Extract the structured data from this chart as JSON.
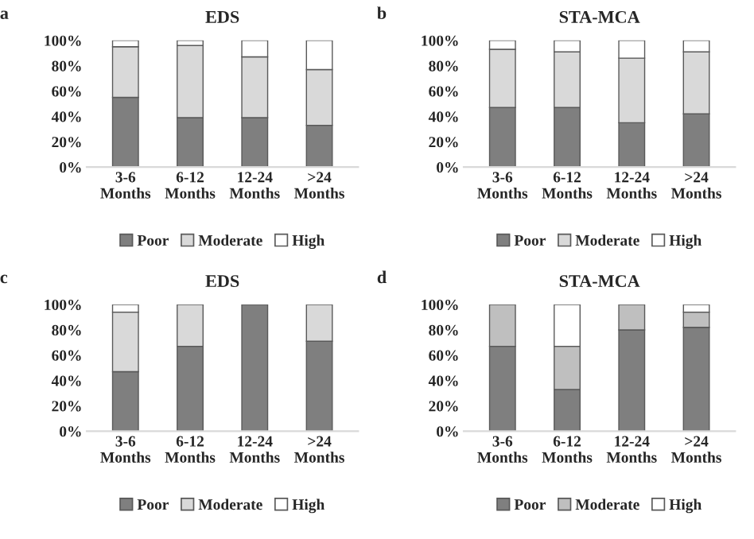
{
  "chart_data": [
    {
      "type": "bar",
      "stacked": true,
      "title": "EDS",
      "annotations": [
        "a"
      ],
      "categories": [
        "3-6\nMonths",
        "6-12\nMonths",
        "12-24\nMonths",
        ">24\nMonths"
      ],
      "ylim": [
        0,
        100
      ],
      "yticks": [
        {
          "value": 0,
          "label": "0%"
        },
        {
          "value": 20,
          "label": "20%"
        },
        {
          "value": 40,
          "label": "40%"
        },
        {
          "value": 60,
          "label": "60%"
        },
        {
          "value": 80,
          "label": "80%"
        },
        {
          "value": 100,
          "label": "100%"
        }
      ],
      "legend": "bottom",
      "series": [
        {
          "name": "Poor",
          "color": "#7f7f7f",
          "values": [
            55,
            39,
            39,
            33
          ]
        },
        {
          "name": "Moderate",
          "color": "#d9d9d9",
          "values": [
            40,
            57,
            48,
            44
          ]
        },
        {
          "name": "High",
          "color": "#ffffff",
          "values": [
            5,
            4,
            13,
            23
          ]
        }
      ]
    },
    {
      "type": "bar",
      "stacked": true,
      "title": "STA-MCA",
      "annotations": [
        "b"
      ],
      "categories": [
        "3-6\nMonths",
        "6-12\nMonths",
        "12-24\nMonths",
        ">24\nMonths"
      ],
      "ylim": [
        0,
        100
      ],
      "yticks": [
        {
          "value": 0,
          "label": "0%"
        },
        {
          "value": 20,
          "label": "20%"
        },
        {
          "value": 40,
          "label": "40%"
        },
        {
          "value": 60,
          "label": "60%"
        },
        {
          "value": 80,
          "label": "80%"
        },
        {
          "value": 100,
          "label": "100%"
        }
      ],
      "legend": "bottom",
      "series": [
        {
          "name": "Poor",
          "color": "#7f7f7f",
          "values": [
            47,
            47,
            35,
            42
          ]
        },
        {
          "name": "Moderate",
          "color": "#d9d9d9",
          "values": [
            46,
            44,
            51,
            49
          ]
        },
        {
          "name": "High",
          "color": "#ffffff",
          "values": [
            7,
            9,
            14,
            9
          ]
        }
      ]
    },
    {
      "type": "bar",
      "stacked": true,
      "title": "EDS",
      "annotations": [
        "c"
      ],
      "categories": [
        "3-6\nMonths",
        "6-12\nMonths",
        "12-24\nMonths",
        ">24\nMonths"
      ],
      "ylim": [
        0,
        100
      ],
      "yticks": [
        {
          "value": 0,
          "label": "0%"
        },
        {
          "value": 20,
          "label": "20%"
        },
        {
          "value": 40,
          "label": "40%"
        },
        {
          "value": 60,
          "label": "60%"
        },
        {
          "value": 80,
          "label": "80%"
        },
        {
          "value": 100,
          "label": "100%"
        }
      ],
      "legend": "bottom",
      "series": [
        {
          "name": "Poor",
          "color": "#7f7f7f",
          "values": [
            47,
            67,
            100,
            71
          ]
        },
        {
          "name": "Moderate",
          "color": "#d9d9d9",
          "values": [
            47,
            33,
            0,
            29
          ]
        },
        {
          "name": "High",
          "color": "#ffffff",
          "values": [
            6,
            0,
            0,
            0
          ]
        }
      ]
    },
    {
      "type": "bar",
      "stacked": true,
      "title": "STA-MCA",
      "annotations": [
        "d"
      ],
      "categories": [
        "3-6\nMonths",
        "6-12\nMonths",
        "12-24\nMonths",
        ">24\nMonths"
      ],
      "ylim": [
        0,
        100
      ],
      "yticks": [
        {
          "value": 0,
          "label": "0%"
        },
        {
          "value": 20,
          "label": "20%"
        },
        {
          "value": 40,
          "label": "40%"
        },
        {
          "value": 60,
          "label": "60%"
        },
        {
          "value": 80,
          "label": "80%"
        },
        {
          "value": 100,
          "label": "100%"
        }
      ],
      "legend": "bottom",
      "series": [
        {
          "name": "Poor",
          "color": "#7f7f7f",
          "values": [
            67,
            33,
            80,
            82
          ]
        },
        {
          "name": "Moderate",
          "color": "#bfbfbf",
          "values": [
            33,
            34,
            20,
            12
          ]
        },
        {
          "name": "High",
          "color": "#ffffff",
          "values": [
            0,
            33,
            0,
            6
          ]
        }
      ]
    }
  ]
}
